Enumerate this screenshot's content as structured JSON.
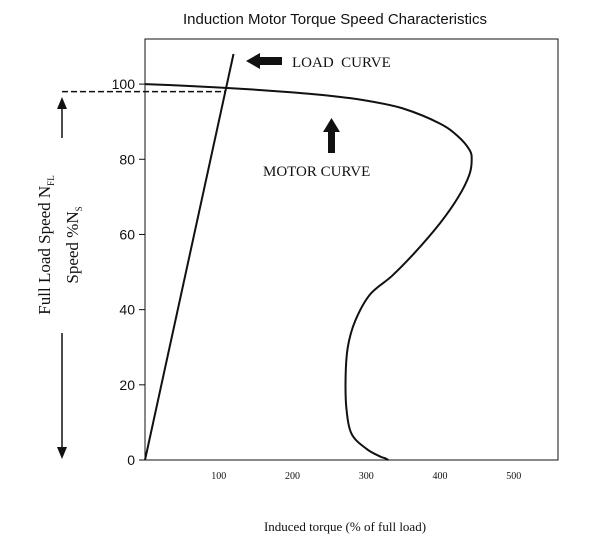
{
  "chart_data": {
    "type": "line",
    "title": "Induction Motor Torque Speed Characteristics",
    "xlabel": "Induced torque (% of full load)",
    "ylabel_line1_main": "Full Load Speed N",
    "ylabel_line1_sub": "FL",
    "ylabel_line2_main": "Speed %N",
    "ylabel_line2_sub": "S",
    "xlim": [
      0,
      560
    ],
    "ylim": [
      0,
      112
    ],
    "x_ticks": [
      100,
      200,
      300,
      400,
      500
    ],
    "x_tick_labels": [
      "100",
      "200",
      "300",
      "400",
      "500"
    ],
    "y_ticks": [
      0,
      20,
      40,
      60,
      80,
      100
    ],
    "y_tick_labels": [
      "0",
      "20",
      "40",
      "60",
      "80",
      "100"
    ],
    "series": [
      {
        "name": "MOTOR CURVE",
        "x": [
          0,
          50,
          100,
          150,
          200,
          250,
          300,
          350,
          400,
          425,
          440,
          443,
          440,
          425,
          400,
          365,
          335,
          305,
          285,
          275,
          272,
          273,
          280,
          300,
          318,
          325,
          330
        ],
        "y": [
          100,
          99.6,
          99.1,
          98.5,
          97.8,
          96.9,
          95.6,
          93.5,
          89.5,
          86,
          82.5,
          80,
          76,
          70,
          63,
          55,
          49,
          44,
          37,
          30,
          22,
          14,
          7,
          3,
          1,
          0.5,
          0
        ]
      },
      {
        "name": "LOAD CURVE",
        "x": [
          0,
          120
        ],
        "y": [
          0,
          108
        ]
      }
    ],
    "full_load_speed": 98,
    "annotations": [
      "LOAD  CURVE",
      "MOTOR CURVE"
    ]
  }
}
